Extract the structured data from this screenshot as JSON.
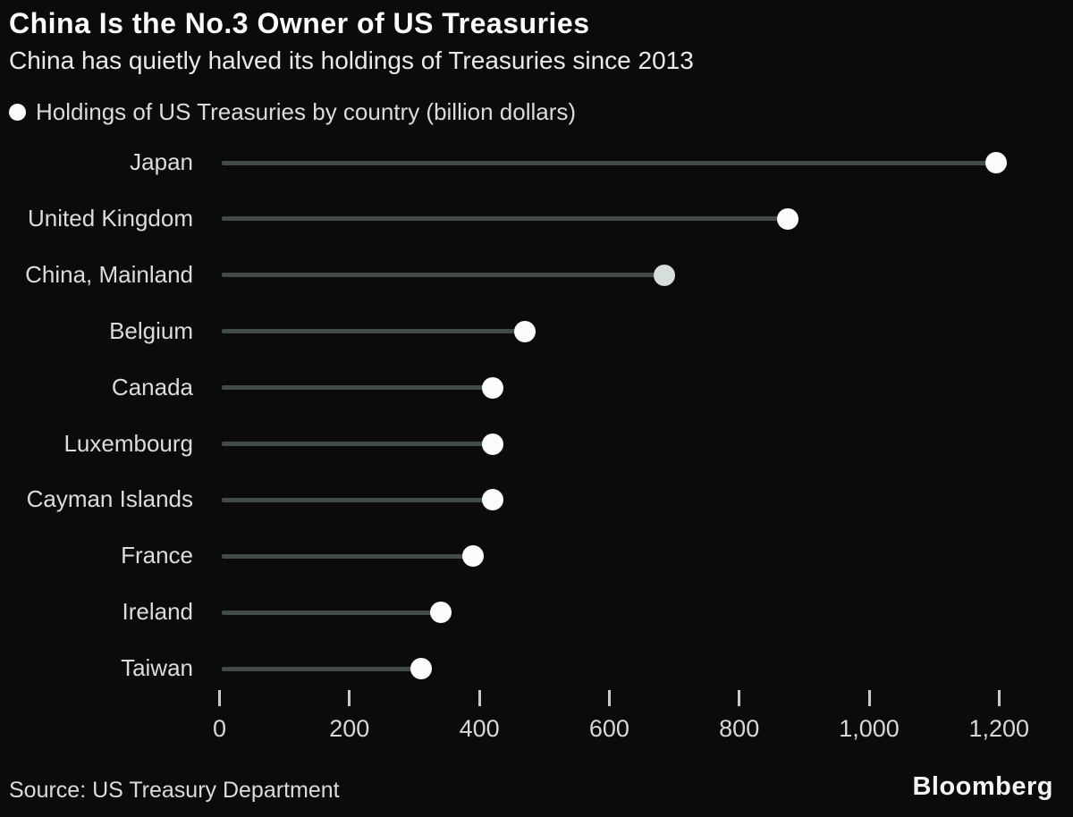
{
  "chart_data": {
    "type": "bar",
    "variant": "horizontal-lollipop",
    "title": "China Is the No.3 Owner of US Treasuries",
    "subtitle": "China has quietly halved its holdings of Treasuries since 2013",
    "series_label": "Holdings of US Treasuries by country (billion dollars)",
    "categories": [
      "Japan",
      "United Kingdom",
      "China, Mainland",
      "Belgium",
      "Canada",
      "Luxembourg",
      "Cayman Islands",
      "France",
      "Ireland",
      "Taiwan"
    ],
    "values": [
      1195,
      875,
      685,
      470,
      420,
      420,
      420,
      390,
      340,
      310
    ],
    "highlight_category": "China, Mainland",
    "xlabel": "",
    "ylabel": "",
    "xlim": [
      0,
      1200
    ],
    "x_ticks": [
      0,
      200,
      400,
      600,
      800,
      1000,
      1200
    ],
    "x_tick_labels": [
      "0",
      "200",
      "400",
      "600",
      "800",
      "1,000",
      "1,200"
    ],
    "grid": "off",
    "legend_position": "top-left"
  },
  "footer": {
    "source": "Source: US Treasury Department",
    "brand": "Bloomberg"
  },
  "colors": {
    "background": "#0a0b0a",
    "title_text": "#fcfcfc",
    "body_text": "#dcdcdc",
    "stem_line": "#414c47",
    "dot": "#fbfbfb",
    "dot_highlight": "#d5ded8",
    "tick": "#c9c9c9"
  }
}
